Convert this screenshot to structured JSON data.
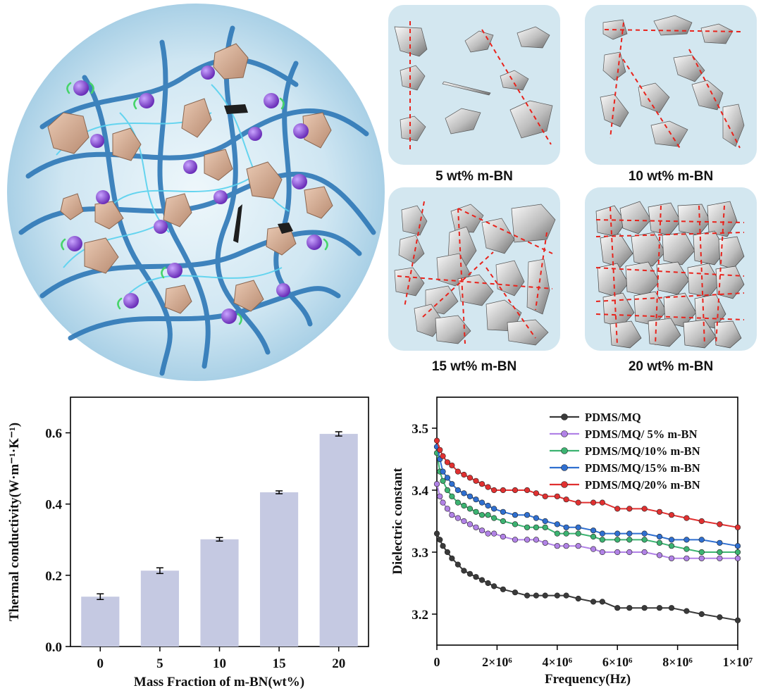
{
  "figure": {
    "panels": [
      {
        "label": "5 wt% m-BN"
      },
      {
        "label": "10 wt% m-BN"
      },
      {
        "label": "15 wt% m-BN"
      },
      {
        "label": "20 wt% m-BN"
      }
    ]
  },
  "chart_data": [
    {
      "type": "bar",
      "title": "",
      "xlabel": "Mass Fraction of m-BN(wt%)",
      "ylabel": "Thermal conductivity(W·m⁻¹·K⁻¹)",
      "categories": [
        "0",
        "5",
        "10",
        "15",
        "20"
      ],
      "values": [
        0.14,
        0.213,
        0.301,
        0.433,
        0.597
      ],
      "errors": [
        0.008,
        0.008,
        0.005,
        0.004,
        0.006
      ],
      "ylim": [
        0,
        0.7
      ],
      "yticks": [
        0.0,
        0.2,
        0.4,
        0.6
      ],
      "ytick_labels": [
        "0.0",
        "0.2",
        "0.4",
        "0.6"
      ],
      "bar_color": "#c5c9e2"
    },
    {
      "type": "line",
      "title": "",
      "xlabel": "Frequency(Hz)",
      "ylabel": "Dielectric constant",
      "xlim": [
        0,
        10000000
      ],
      "ylim": [
        3.15,
        3.55
      ],
      "xticks": [
        0,
        2000000,
        4000000,
        6000000,
        8000000,
        10000000
      ],
      "xtick_labels": [
        "0",
        "2×10⁶",
        "4×10⁶",
        "6×10⁶",
        "8×10⁶",
        "1×10⁷"
      ],
      "yticks": [
        3.2,
        3.3,
        3.4,
        3.5
      ],
      "ytick_labels": [
        "3.2",
        "3.3",
        "3.4",
        "3.5"
      ],
      "legend_position": "top-right",
      "series": [
        {
          "name": "PDMS/MQ",
          "color": "#3a3a3a",
          "x": [
            0,
            100000,
            200000,
            350000,
            500000,
            700000,
            900000,
            1100000,
            1300000,
            1500000,
            1700000,
            1900000,
            2200000,
            2600000,
            3000000,
            3300000,
            3600000,
            4000000,
            4300000,
            4700000,
            5200000,
            5500000,
            6000000,
            6400000,
            6900000,
            7400000,
            7800000,
            8300000,
            8800000,
            9400000,
            10000000
          ],
          "y": [
            3.33,
            3.32,
            3.31,
            3.3,
            3.29,
            3.28,
            3.27,
            3.265,
            3.26,
            3.255,
            3.25,
            3.245,
            3.24,
            3.235,
            3.23,
            3.23,
            3.23,
            3.23,
            3.23,
            3.225,
            3.22,
            3.22,
            3.21,
            3.21,
            3.21,
            3.21,
            3.21,
            3.205,
            3.2,
            3.195,
            3.19
          ]
        },
        {
          "name": "PDMS/MQ/ 5% m-BN",
          "color": "#b182e6",
          "x": [
            0,
            100000,
            200000,
            350000,
            500000,
            700000,
            900000,
            1100000,
            1300000,
            1500000,
            1700000,
            1900000,
            2200000,
            2600000,
            3000000,
            3300000,
            3600000,
            4000000,
            4300000,
            4700000,
            5200000,
            5500000,
            6000000,
            6400000,
            6900000,
            7400000,
            7800000,
            8300000,
            8800000,
            9400000,
            10000000
          ],
          "y": [
            3.41,
            3.39,
            3.38,
            3.37,
            3.36,
            3.355,
            3.35,
            3.345,
            3.34,
            3.335,
            3.33,
            3.33,
            3.325,
            3.32,
            3.32,
            3.32,
            3.315,
            3.31,
            3.31,
            3.31,
            3.305,
            3.3,
            3.3,
            3.3,
            3.3,
            3.295,
            3.29,
            3.29,
            3.29,
            3.29,
            3.29
          ]
        },
        {
          "name": "PDMS/MQ/10% m-BN",
          "color": "#3cb371",
          "x": [
            0,
            100000,
            200000,
            350000,
            500000,
            700000,
            900000,
            1100000,
            1300000,
            1500000,
            1700000,
            1900000,
            2200000,
            2600000,
            3000000,
            3300000,
            3600000,
            4000000,
            4300000,
            4700000,
            5200000,
            5500000,
            6000000,
            6400000,
            6900000,
            7400000,
            7800000,
            8300000,
            8800000,
            9400000,
            10000000
          ],
          "y": [
            3.46,
            3.43,
            3.415,
            3.4,
            3.39,
            3.38,
            3.375,
            3.37,
            3.365,
            3.36,
            3.36,
            3.355,
            3.35,
            3.345,
            3.34,
            3.34,
            3.34,
            3.33,
            3.33,
            3.33,
            3.325,
            3.32,
            3.32,
            3.32,
            3.32,
            3.315,
            3.31,
            3.305,
            3.3,
            3.3,
            3.3
          ]
        },
        {
          "name": "PDMS/MQ/15% m-BN",
          "color": "#2f6fd0",
          "x": [
            0,
            100000,
            200000,
            350000,
            500000,
            700000,
            900000,
            1100000,
            1300000,
            1500000,
            1700000,
            1900000,
            2200000,
            2600000,
            3000000,
            3300000,
            3600000,
            4000000,
            4300000,
            4700000,
            5200000,
            5500000,
            6000000,
            6400000,
            6900000,
            7400000,
            7800000,
            8300000,
            8800000,
            9400000,
            10000000
          ],
          "y": [
            3.47,
            3.45,
            3.43,
            3.42,
            3.41,
            3.4,
            3.395,
            3.39,
            3.385,
            3.38,
            3.375,
            3.37,
            3.365,
            3.36,
            3.36,
            3.355,
            3.35,
            3.345,
            3.34,
            3.34,
            3.335,
            3.33,
            3.33,
            3.33,
            3.33,
            3.325,
            3.32,
            3.32,
            3.32,
            3.315,
            3.31
          ]
        },
        {
          "name": "PDMS/MQ/20% m-BN",
          "color": "#e03030",
          "x": [
            0,
            100000,
            200000,
            350000,
            500000,
            700000,
            900000,
            1100000,
            1300000,
            1500000,
            1700000,
            1900000,
            2200000,
            2600000,
            3000000,
            3300000,
            3600000,
            4000000,
            4300000,
            4700000,
            5200000,
            5500000,
            6000000,
            6400000,
            6900000,
            7400000,
            7800000,
            8300000,
            8800000,
            9400000,
            10000000
          ],
          "y": [
            3.48,
            3.465,
            3.455,
            3.445,
            3.44,
            3.43,
            3.425,
            3.42,
            3.415,
            3.41,
            3.405,
            3.4,
            3.4,
            3.4,
            3.4,
            3.395,
            3.39,
            3.39,
            3.385,
            3.38,
            3.38,
            3.38,
            3.37,
            3.37,
            3.37,
            3.365,
            3.36,
            3.355,
            3.35,
            3.345,
            3.34
          ]
        }
      ]
    }
  ]
}
